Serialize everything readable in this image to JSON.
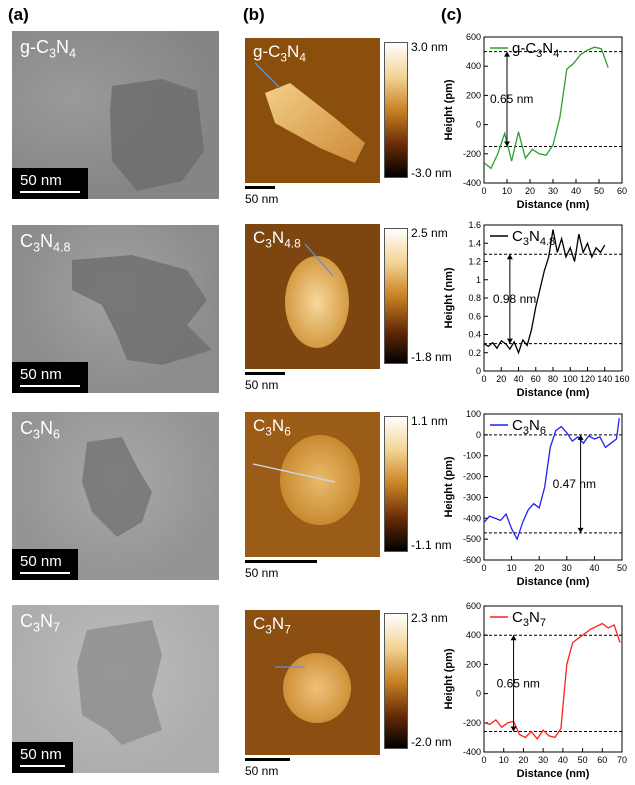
{
  "panel_labels": [
    "(a)",
    "(b)",
    "(c)"
  ],
  "rows": [
    {
      "material": "g-C3N4",
      "tem": {
        "label": "g-C3N4",
        "scale_bar": "50 nm"
      },
      "afm": {
        "label": "g-C3N4",
        "scale_bar": "50 nm",
        "cbar_max": "3.0 nm",
        "cbar_min": "-3.0 nm"
      },
      "profile_color": "#2ca02c"
    },
    {
      "material": "C3N4.8",
      "tem": {
        "label": "C3N4.8",
        "scale_bar": "50 nm"
      },
      "afm": {
        "label": "C3N4.8",
        "scale_bar": "50 nm",
        "cbar_max": "2.5 nm",
        "cbar_min": "-1.8 nm"
      },
      "profile_color": "#000000"
    },
    {
      "material": "C3N6",
      "tem": {
        "label": "C3N6",
        "scale_bar": "50 nm"
      },
      "afm": {
        "label": "C3N6",
        "scale_bar": "50 nm",
        "cbar_max": "1.1 nm",
        "cbar_min": "-1.1 nm"
      },
      "profile_color": "#1f1fff"
    },
    {
      "material": "C3N7",
      "tem": {
        "label": "C3N7",
        "scale_bar": "50 nm"
      },
      "afm": {
        "label": "C3N7",
        "scale_bar": "50 nm",
        "cbar_max": "2.3 nm",
        "cbar_min": "-2.0 nm"
      },
      "profile_color": "#ff1f1f"
    }
  ],
  "chart_data": [
    {
      "type": "line",
      "legend": "g-C3N4",
      "xlabel": "Distance (nm)",
      "ylabel": "Height (pm)",
      "xlim": [
        0,
        60
      ],
      "ylim": [
        -400,
        600
      ],
      "xticks": [
        0,
        10,
        20,
        30,
        40,
        50,
        60
      ],
      "yticks": [
        -400,
        -200,
        0,
        200,
        400,
        600
      ],
      "x": [
        0,
        3,
        6,
        9,
        12,
        15,
        18,
        21,
        24,
        27,
        30,
        33,
        36,
        39,
        42,
        45,
        48,
        51,
        54
      ],
      "y": [
        -260,
        -300,
        -200,
        -60,
        -250,
        -50,
        -230,
        -170,
        -200,
        -210,
        -140,
        50,
        380,
        420,
        480,
        510,
        530,
        520,
        390
      ],
      "annotation": "0.65 nm",
      "reference_lines": [
        500,
        -150
      ]
    },
    {
      "type": "line",
      "legend": "C3N4.8",
      "xlabel": "Distance (nm)",
      "ylabel": "Height (nm)",
      "xlim": [
        0,
        160
      ],
      "ylim": [
        0.0,
        1.6
      ],
      "xticks": [
        0,
        20,
        40,
        60,
        80,
        100,
        120,
        140,
        160
      ],
      "yticks": [
        0.0,
        0.2,
        0.4,
        0.6,
        0.8,
        1.0,
        1.2,
        1.4,
        1.6
      ],
      "x": [
        0,
        5,
        10,
        15,
        20,
        25,
        30,
        35,
        40,
        45,
        50,
        55,
        60,
        65,
        70,
        75,
        80,
        85,
        90,
        95,
        100,
        105,
        110,
        115,
        120,
        125,
        130,
        135,
        140
      ],
      "y": [
        0.3,
        0.27,
        0.31,
        0.25,
        0.33,
        0.3,
        0.24,
        0.32,
        0.2,
        0.34,
        0.28,
        0.45,
        0.7,
        0.9,
        1.1,
        1.25,
        1.55,
        1.3,
        1.45,
        1.25,
        1.35,
        1.2,
        1.5,
        1.3,
        1.4,
        1.25,
        1.35,
        1.3,
        1.38
      ],
      "annotation": "0.98 nm",
      "reference_lines": [
        1.28,
        0.3
      ]
    },
    {
      "type": "line",
      "legend": "C3N6",
      "xlabel": "Distance (nm)",
      "ylabel": "Height (pm)",
      "xlim": [
        0,
        50
      ],
      "ylim": [
        -600,
        100
      ],
      "xticks": [
        0,
        10,
        20,
        30,
        40,
        50
      ],
      "yticks": [
        -600,
        -500,
        -400,
        -300,
        -200,
        -100,
        0,
        100
      ],
      "x": [
        0,
        2,
        4,
        6,
        8,
        10,
        12,
        14,
        16,
        18,
        20,
        22,
        24,
        26,
        28,
        30,
        32,
        34,
        36,
        38,
        40,
        42,
        44,
        46,
        48,
        49
      ],
      "y": [
        -420,
        -390,
        -400,
        -410,
        -380,
        -450,
        -500,
        -420,
        -360,
        -330,
        -350,
        -250,
        -60,
        20,
        40,
        10,
        -30,
        -10,
        -40,
        -5,
        -20,
        -10,
        -60,
        -40,
        -20,
        80
      ],
      "annotation": "0.47 nm",
      "reference_lines": [
        0,
        -470
      ]
    },
    {
      "type": "line",
      "legend": "C3N7",
      "xlabel": "Distance (nm)",
      "ylabel": "Height (pm)",
      "xlim": [
        0,
        70
      ],
      "ylim": [
        -400,
        600
      ],
      "xticks": [
        0,
        10,
        20,
        30,
        40,
        50,
        60,
        70
      ],
      "yticks": [
        -400,
        -200,
        0,
        200,
        400,
        600
      ],
      "x": [
        0,
        3,
        6,
        9,
        12,
        15,
        18,
        21,
        24,
        27,
        30,
        33,
        36,
        39,
        42,
        45,
        48,
        51,
        54,
        57,
        60,
        63,
        66,
        69
      ],
      "y": [
        -200,
        -210,
        -180,
        -230,
        -200,
        -190,
        -280,
        -300,
        -260,
        -310,
        -250,
        -290,
        -300,
        -240,
        200,
        350,
        380,
        410,
        440,
        460,
        480,
        450,
        470,
        350
      ],
      "annotation": "0.65 nm",
      "reference_lines": [
        400,
        -260
      ]
    }
  ]
}
